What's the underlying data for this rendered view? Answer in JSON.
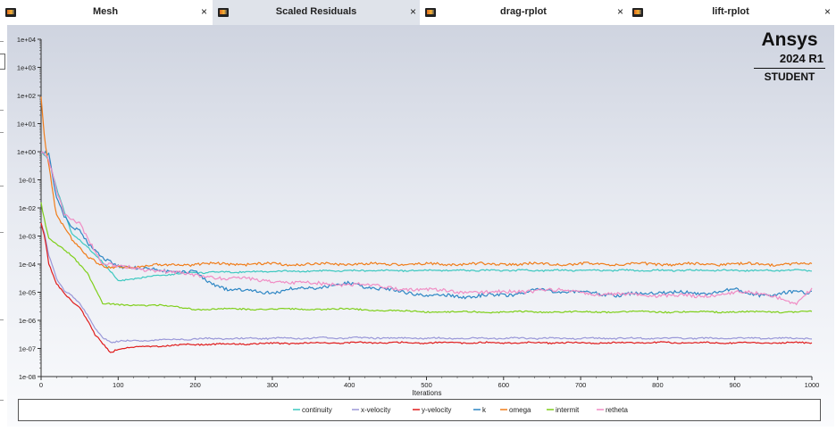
{
  "tabs": [
    {
      "label": "Mesh",
      "active": false
    },
    {
      "label": "Scaled Residuals",
      "active": true
    },
    {
      "label": "drag-rplot",
      "active": false
    },
    {
      "label": "lift-rplot",
      "active": false
    }
  ],
  "close_glyph": "×",
  "tab_icon": "fluent-graphics-window-icon",
  "branding": {
    "name": "Ansys",
    "version": "2024 R1",
    "edition": "STUDENT"
  },
  "chart_data": {
    "type": "line",
    "xlabel": "Iterations",
    "ylabel": "",
    "xlim": [
      0,
      1000
    ],
    "ylim_log10": [
      -8,
      4
    ],
    "y_scale": "log",
    "x_ticks": [
      "0",
      "100",
      "200",
      "300",
      "400",
      "500",
      "600",
      "700",
      "800",
      "900",
      "1000"
    ],
    "y_ticks": [
      "1e+04",
      "1e+03",
      "1e+02",
      "1e+01",
      "1e+00",
      "1e-01",
      "1e-02",
      "1e-03",
      "1e-04",
      "1e-05",
      "1e-06",
      "1e-07",
      "1e-08"
    ],
    "legend_position": "bottom",
    "series": [
      {
        "name": "continuity",
        "color": "#3cc8c0",
        "x": [
          0,
          10,
          20,
          40,
          60,
          80,
          100,
          120,
          150,
          200,
          300,
          400,
          500,
          600,
          700,
          800,
          900,
          1000
        ],
        "y": [
          1.0,
          0.5,
          0.05,
          0.0012,
          0.0004,
          0.00012,
          2.5e-05,
          3e-05,
          4e-05,
          5e-05,
          5.5e-05,
          5.8e-05,
          6e-05,
          6e-05,
          6e-05,
          6e-05,
          6e-05,
          6e-05
        ]
      },
      {
        "name": "x-velocity",
        "color": "#9a98d8",
        "x": [
          0,
          5,
          10,
          20,
          30,
          40,
          50,
          60,
          70,
          80,
          90,
          100,
          150,
          200,
          300,
          400,
          500,
          600,
          700,
          800,
          900,
          1000
        ],
        "y": [
          0.003,
          0.001,
          0.0002,
          3e-05,
          1.2e-05,
          8e-06,
          4e-06,
          1.5e-06,
          5e-07,
          2.5e-07,
          1.7e-07,
          1.8e-07,
          2e-07,
          2.2e-07,
          2.3e-07,
          2.4e-07,
          2.3e-07,
          2.3e-07,
          2.3e-07,
          2.3e-07,
          2.3e-07,
          2.3e-07
        ]
      },
      {
        "name": "y-velocity",
        "color": "#e01c1c",
        "x": [
          0,
          5,
          10,
          20,
          30,
          40,
          50,
          60,
          70,
          80,
          90,
          100,
          150,
          200,
          300,
          400,
          500,
          600,
          700,
          800,
          900,
          1000
        ],
        "y": [
          0.003,
          0.0008,
          0.0001,
          2e-05,
          9e-06,
          5e-06,
          3e-06,
          1e-06,
          3e-07,
          1.5e-07,
          7e-08,
          1e-07,
          1.2e-07,
          1.4e-07,
          1.5e-07,
          1.6e-07,
          1.6e-07,
          1.6e-07,
          1.6e-07,
          1.6e-07,
          1.6e-07,
          1.6e-07
        ]
      },
      {
        "name": "k",
        "color": "#2d86c4",
        "x": [
          0,
          10,
          20,
          30,
          40,
          50,
          60,
          70,
          80,
          100,
          150,
          200,
          220,
          250,
          300,
          350,
          400,
          450,
          500,
          550,
          600,
          650,
          700,
          750,
          800,
          850,
          900,
          950,
          980,
          1000
        ],
        "y": [
          1.0,
          0.8,
          0.02,
          0.005,
          0.002,
          0.002,
          0.0006,
          0.0003,
          0.00015,
          9e-05,
          6e-05,
          5e-05,
          2e-05,
          1.2e-05,
          1e-05,
          1.5e-05,
          2e-05,
          1.2e-05,
          8e-06,
          7e-06,
          8e-06,
          1.2e-05,
          1e-05,
          8e-06,
          1e-05,
          9e-06,
          1.2e-05,
          7e-06,
          1.2e-05,
          1e-05
        ]
      },
      {
        "name": "omega",
        "color": "#f07d1a",
        "x": [
          0,
          5,
          10,
          20,
          40,
          60,
          80,
          90,
          100,
          150,
          200,
          300,
          400,
          500,
          600,
          700,
          800,
          900,
          1000
        ],
        "y": [
          100,
          2,
          0.3,
          0.005,
          0.0008,
          0.0002,
          8e-05,
          7e-05,
          8e-05,
          9e-05,
          0.0001,
          0.0001,
          0.0001,
          0.0001,
          0.0001,
          0.0001,
          0.0001,
          0.0001,
          0.0001
        ]
      },
      {
        "name": "intermit",
        "color": "#7fcf1a",
        "x": [
          0,
          5,
          10,
          20,
          40,
          60,
          80,
          100,
          150,
          200,
          300,
          400,
          500,
          600,
          700,
          800,
          900,
          1000
        ],
        "y": [
          0.015,
          0.003,
          0.0008,
          0.0005,
          0.0002,
          5e-05,
          4e-06,
          3.5e-06,
          3.5e-06,
          2.5e-06,
          2.5e-06,
          2.5e-06,
          2e-06,
          2e-06,
          2e-06,
          2e-06,
          2e-06,
          2e-06
        ]
      },
      {
        "name": "retheta",
        "color": "#f08cc4",
        "x": [
          0,
          10,
          20,
          30,
          40,
          50,
          60,
          70,
          80,
          100,
          150,
          200,
          250,
          300,
          350,
          400,
          450,
          500,
          550,
          600,
          650,
          700,
          750,
          800,
          850,
          900,
          950,
          980,
          1000
        ],
        "y": [
          1.0,
          0.5,
          0.04,
          0.006,
          0.004,
          0.003,
          0.001,
          0.0003,
          0.0001,
          8e-05,
          6e-05,
          4e-05,
          3e-05,
          2.5e-05,
          2e-05,
          2e-05,
          1.5e-05,
          1.2e-05,
          1e-05,
          1e-05,
          1.2e-05,
          1e-05,
          8e-06,
          8e-06,
          7e-06,
          1e-05,
          8e-06,
          4e-06,
          1.2e-05
        ]
      }
    ]
  }
}
